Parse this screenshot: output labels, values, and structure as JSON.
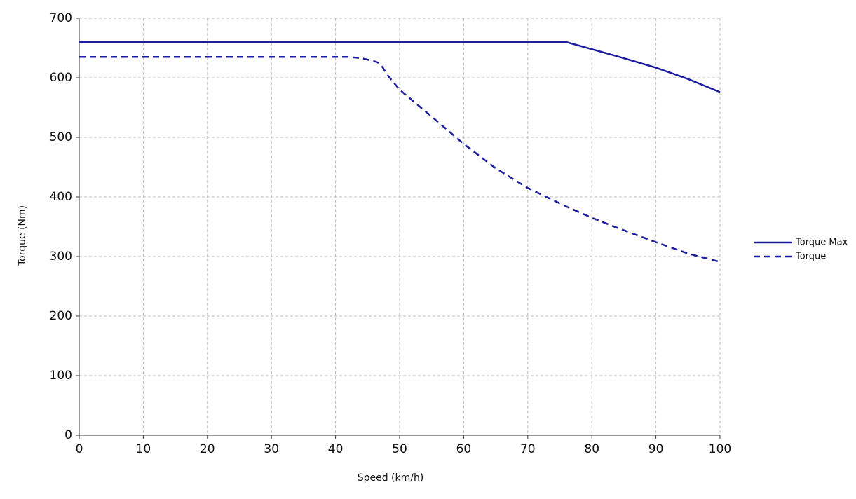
{
  "chart_data": {
    "type": "line",
    "x_label": "Speed (km/h)",
    "y_label": "Torque (Nm)",
    "x": [
      0,
      10,
      20,
      30,
      40,
      42,
      44,
      46,
      47,
      48,
      50,
      55,
      60,
      65,
      70,
      76,
      80,
      84,
      90,
      95,
      100
    ],
    "series": [
      {
        "name": "Torque Max",
        "color": "#1c1c9e",
        "style": "solid",
        "values": [
          660,
          660,
          660,
          660,
          660,
          660,
          660,
          660,
          660,
          660,
          660,
          660,
          660,
          660,
          660,
          660,
          648,
          636,
          617,
          598,
          576
        ]
      },
      {
        "name": "Torque",
        "color": "#1c1c9e",
        "style": "dashed",
        "values": [
          635,
          635,
          635,
          635,
          635,
          635,
          633,
          628,
          624,
          606,
          580,
          535,
          489,
          448,
          415,
          384,
          365,
          348,
          324,
          305,
          291
        ]
      }
    ],
    "xlim": [
      0,
      100
    ],
    "xticks": [
      0,
      10,
      20,
      30,
      40,
      50,
      60,
      70,
      80,
      90,
      100
    ],
    "ylim": [
      0,
      700
    ],
    "yticks": [
      0,
      100,
      200,
      300,
      400,
      500,
      600,
      700
    ],
    "grid": true,
    "legend": "right"
  }
}
